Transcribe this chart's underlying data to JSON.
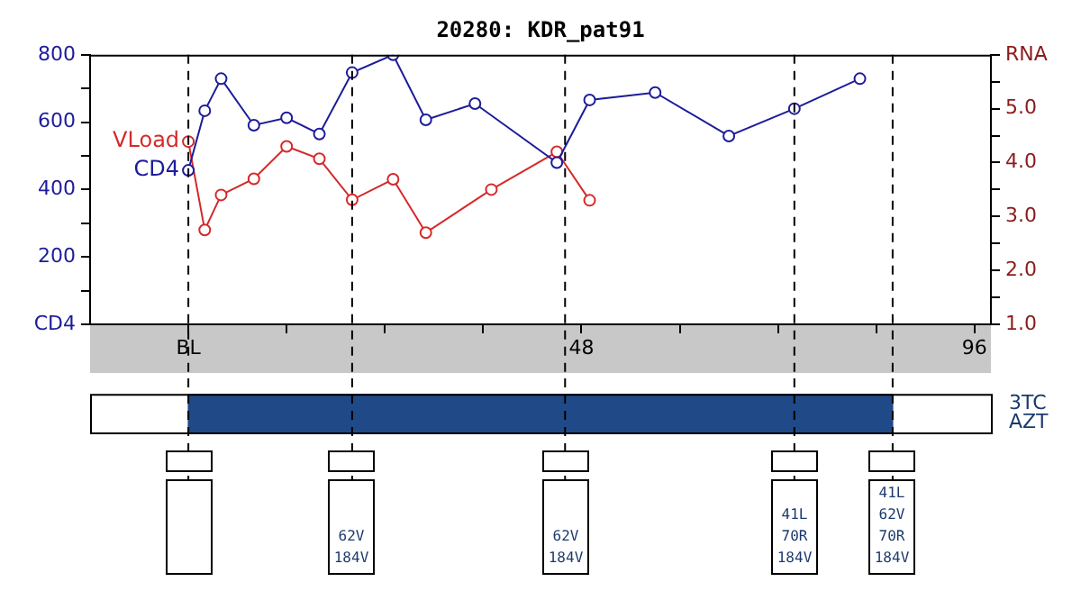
{
  "chart_data": [
    {
      "type": "line",
      "title": "20280: KDR_pat91",
      "xlim": [
        -12,
        98
      ],
      "xticks": [
        {
          "value": 0,
          "label": "BL"
        },
        {
          "value": 12,
          "label": null
        },
        {
          "value": 24,
          "label": null
        },
        {
          "value": 36,
          "label": null
        },
        48,
        {
          "value": 60,
          "label": null
        },
        {
          "value": 72,
          "label": null
        },
        {
          "value": 84,
          "label": null
        },
        96
      ],
      "ylim": [
        0,
        800
      ],
      "yticks": [
        {
          "value": 0,
          "label": "CD4"
        },
        {
          "value": 100,
          "label": null
        },
        200,
        {
          "value": 300,
          "label": null
        },
        400,
        {
          "value": 500,
          "label": null
        },
        600,
        {
          "value": 700,
          "label": null
        },
        800
      ],
      "y2lim": [
        1,
        6
      ],
      "y2ticks": [
        {
          "value": 1,
          "label": "1.0"
        },
        {
          "value": 1.5,
          "label": null
        },
        {
          "value": 2,
          "label": "2.0"
        },
        {
          "value": 2.5,
          "label": null
        },
        {
          "value": 3,
          "label": "3.0"
        },
        {
          "value": 3.5,
          "label": null
        },
        {
          "value": 4,
          "label": "4.0"
        },
        {
          "value": 4.5,
          "label": null
        },
        {
          "value": 5,
          "label": "5.0"
        },
        {
          "value": 5.5,
          "label": null
        },
        {
          "value": 6,
          "label": "RNA"
        }
      ],
      "series": [
        {
          "name": "CD4",
          "color": "#1c1c9a",
          "x": [
            0,
            2,
            4,
            8,
            12,
            16,
            20,
            25,
            29,
            35,
            45,
            49,
            57,
            66,
            74,
            82
          ],
          "values": [
            457,
            634,
            729,
            591,
            613,
            565,
            747,
            800,
            607,
            655,
            480,
            666,
            688,
            559,
            640,
            729
          ]
        },
        {
          "name": "VLoad",
          "color": "#d42a2a",
          "axis": "y2",
          "x": [
            0,
            2,
            4,
            8,
            12,
            16,
            20,
            25,
            29,
            37,
            45,
            49
          ],
          "values": [
            4.39,
            2.75,
            3.4,
            3.7,
            4.3,
            4.07,
            3.31,
            3.69,
            2.7,
            3.5,
            4.2,
            3.3
          ]
        }
      ],
      "ref_lines": [
        {
          "axis": "x",
          "value": 0,
          "color": "#000000",
          "line_style": "dashed"
        },
        {
          "axis": "x",
          "value": 20,
          "color": "#000000",
          "line_style": "dashed"
        },
        {
          "axis": "x",
          "value": 46,
          "color": "#000000",
          "line_style": "dashed"
        },
        {
          "axis": "x",
          "value": 74,
          "color": "#000000",
          "line_style": "dashed"
        },
        {
          "axis": "x",
          "value": 86,
          "color": "#000000",
          "line_style": "dashed"
        }
      ],
      "marker": "circle",
      "grid": false,
      "legend": false
    },
    {
      "type": "bar",
      "orientation": "horizontal",
      "categories": [
        "3TC",
        "AZT"
      ],
      "base": [
        0,
        0
      ],
      "values": [
        86,
        86
      ],
      "color": "#1f4a87",
      "xlim": [
        -12,
        98
      ],
      "tick_labels": "y",
      "ref_lines": [
        {
          "axis": "x",
          "value": 0,
          "color": "#000000",
          "line_style": "dashed"
        },
        {
          "axis": "x",
          "value": 20,
          "label": "62V\n184V",
          "color": "#000000",
          "line_style": "dashed"
        },
        {
          "axis": "x",
          "value": 46,
          "label": "62V\n184V",
          "color": "#000000",
          "line_style": "dashed"
        },
        {
          "axis": "x",
          "value": 74,
          "label": "41L\n70R\n184V",
          "color": "#000000",
          "line_style": "dashed"
        },
        {
          "axis": "x",
          "value": 86,
          "label": "41L\n62V\n70R\n184V",
          "color": "#000000",
          "line_style": "dashed"
        }
      ]
    }
  ]
}
